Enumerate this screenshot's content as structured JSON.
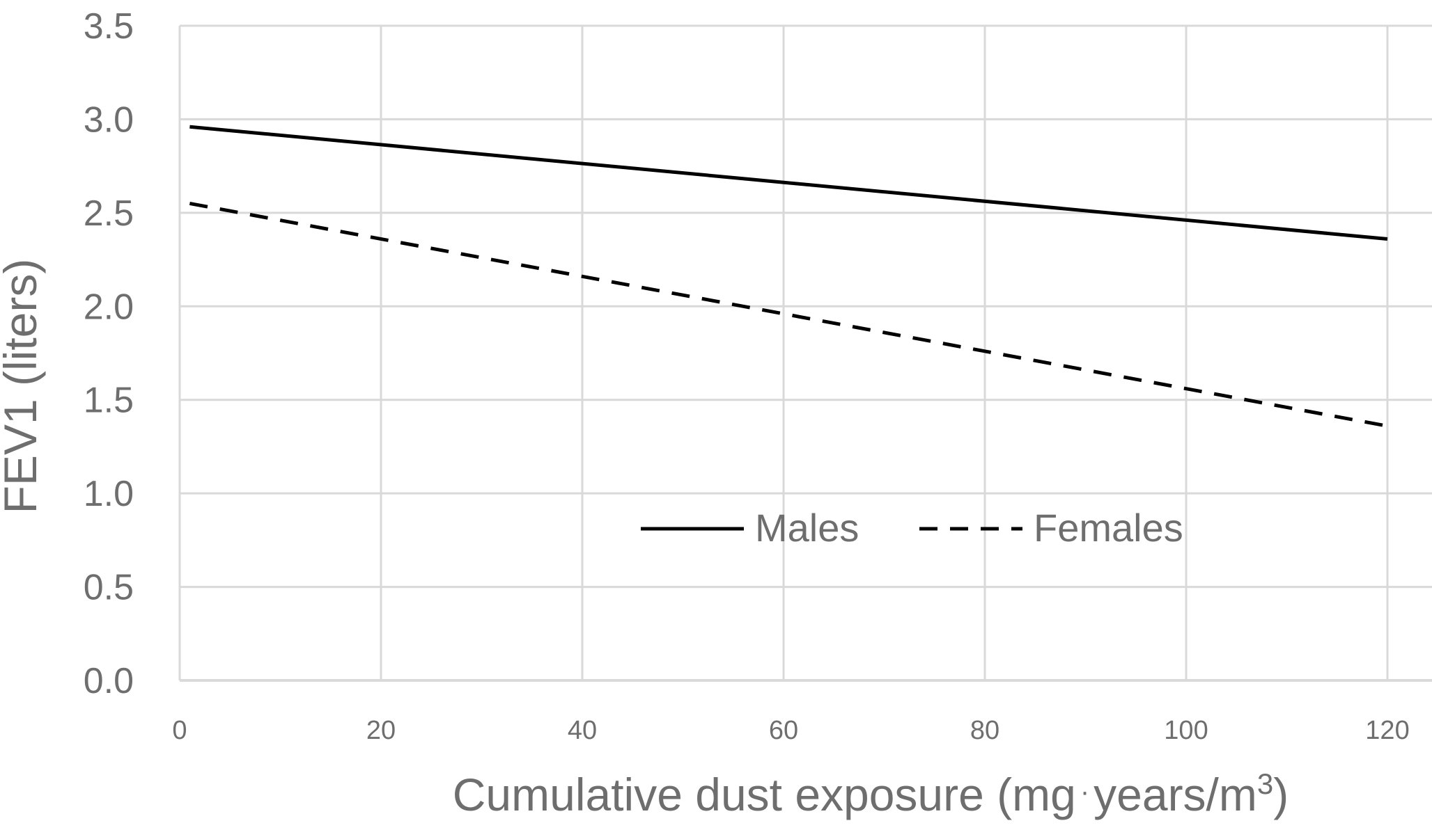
{
  "chart_data": {
    "type": "line",
    "title": "",
    "xlabel_main": "Cumulative dust exposure (mg",
    "xlabel_dot": "·",
    "xlabel_tail": "years/m",
    "xlabel_sup": "3",
    "xlabel_close": ")",
    "ylabel": "FEV1 (liters)",
    "xlim": [
      0,
      120
    ],
    "ylim": [
      0,
      3.5
    ],
    "x_ticks": [
      "0",
      "20",
      "40",
      "60",
      "80",
      "100",
      "120"
    ],
    "y_ticks": [
      "0.0",
      "0.5",
      "1.0",
      "1.5",
      "2.0",
      "2.5",
      "3.0",
      "3.5"
    ],
    "grid": true,
    "legend_position": "center",
    "series": [
      {
        "name": "Males",
        "style": "solid",
        "color": "#000000",
        "x": [
          1,
          120
        ],
        "y": [
          2.96,
          2.36
        ]
      },
      {
        "name": "Females",
        "style": "dashed",
        "color": "#000000",
        "x": [
          1,
          120
        ],
        "y": [
          2.55,
          1.36
        ]
      }
    ]
  }
}
